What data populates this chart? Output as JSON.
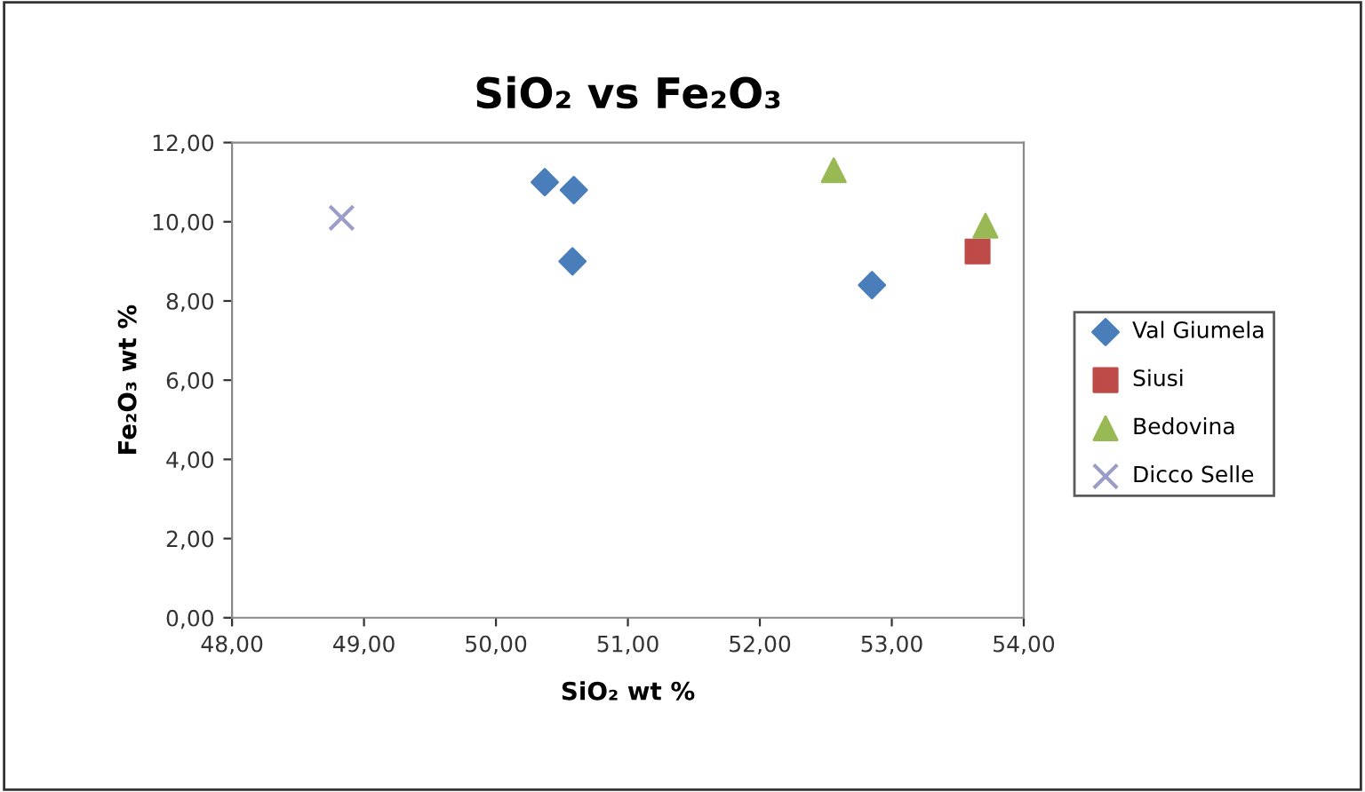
{
  "chart_data": {
    "type": "scatter",
    "title": "SiO₂ vs Fe₂O₃",
    "xlabel": "SiO₂ wt %",
    "ylabel": "Fe₂O₃ wt %",
    "xlim": [
      48,
      54
    ],
    "ylim": [
      0,
      12
    ],
    "xticks": [
      {
        "value": 48,
        "label": "48,00"
      },
      {
        "value": 49,
        "label": "49,00"
      },
      {
        "value": 50,
        "label": "50,00"
      },
      {
        "value": 51,
        "label": "51,00"
      },
      {
        "value": 52,
        "label": "52,00"
      },
      {
        "value": 53,
        "label": "53,00"
      },
      {
        "value": 54,
        "label": "54,00"
      }
    ],
    "yticks": [
      {
        "value": 0,
        "label": "0,00"
      },
      {
        "value": 2,
        "label": "2,00"
      },
      {
        "value": 4,
        "label": "4,00"
      },
      {
        "value": 6,
        "label": "6,00"
      },
      {
        "value": 8,
        "label": "8,00"
      },
      {
        "value": 10,
        "label": "10,00"
      },
      {
        "value": 12,
        "label": "12,00"
      }
    ],
    "grid": false,
    "legend": "right",
    "series": [
      {
        "name": "Val Giumela",
        "color": "#4a7ebb",
        "marker": "diamond",
        "x": [
          50.37,
          50.59,
          50.58,
          52.85
        ],
        "values": [
          11.0,
          10.8,
          9.0,
          8.4
        ]
      },
      {
        "name": "Siusi",
        "color": "#be4b48",
        "marker": "square",
        "x": [
          53.65
        ],
        "values": [
          9.25
        ]
      },
      {
        "name": "Bedovina",
        "color": "#98b954",
        "marker": "triangle",
        "x": [
          52.56,
          53.71
        ],
        "values": [
          11.3,
          9.9
        ]
      },
      {
        "name": "Dicco Selle",
        "color": "#9c9cc8",
        "marker": "cross",
        "x": [
          48.83
        ],
        "values": [
          10.1
        ]
      }
    ]
  }
}
